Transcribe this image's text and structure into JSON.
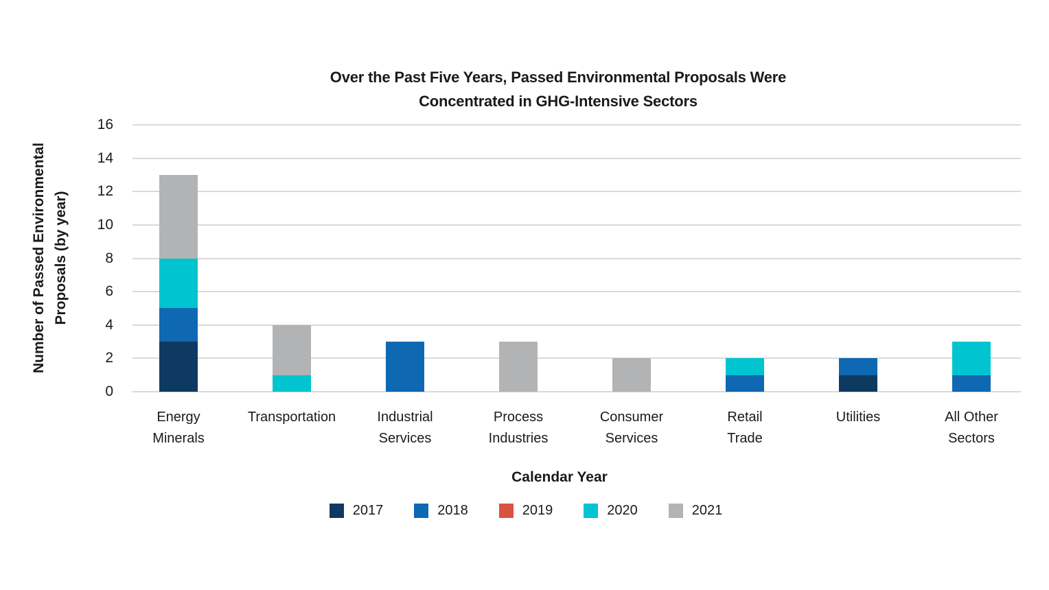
{
  "chart": {
    "title": "Over the Past Five Years, Passed Environmental Proposals Were\nConcentrated in GHG-Intensive Sectors"
  },
  "chart_data": {
    "type": "bar",
    "stacked": true,
    "title": "Over the Past Five Years, Passed Environmental Proposals Were Concentrated in GHG-Intensive Sectors",
    "xlabel": "Calendar Year",
    "ylabel": "Number of Passed Environmental\nProposals (by year)",
    "ylim": [
      0,
      16
    ],
    "yticks": [
      0,
      2,
      4,
      6,
      8,
      10,
      12,
      14,
      16
    ],
    "grid": "horizontal",
    "legend_position": "bottom",
    "categories": [
      "Energy\nMinerals",
      "Transportation",
      "Industrial\nServices",
      "Process\nIndustries",
      "Consumer\nServices",
      "Retail\nTrade",
      "Utilities",
      "All Other\nSectors"
    ],
    "series": [
      {
        "name": "2017",
        "color": "#0e3a62",
        "values": [
          3,
          0,
          0,
          0,
          0,
          0,
          1,
          0
        ]
      },
      {
        "name": "2018",
        "color": "#0f68b2",
        "values": [
          2,
          0,
          3,
          0,
          0,
          1,
          1,
          1
        ]
      },
      {
        "name": "2019",
        "color": "#d8543e",
        "values": [
          0,
          0,
          0,
          0,
          0,
          0,
          0,
          0
        ]
      },
      {
        "name": "2020",
        "color": "#00c4cf",
        "values": [
          3,
          1,
          0,
          0,
          0,
          1,
          0,
          2
        ]
      },
      {
        "name": "2021",
        "color": "#b1b3b5",
        "values": [
          5,
          3,
          0,
          3,
          2,
          0,
          0,
          0
        ]
      }
    ],
    "totals_by_category": [
      13,
      4,
      3,
      3,
      2,
      2,
      2,
      3
    ],
    "colors": {
      "gridline": "#d9d9d9",
      "text": "#1a1a1a",
      "background": "#ffffff"
    }
  }
}
